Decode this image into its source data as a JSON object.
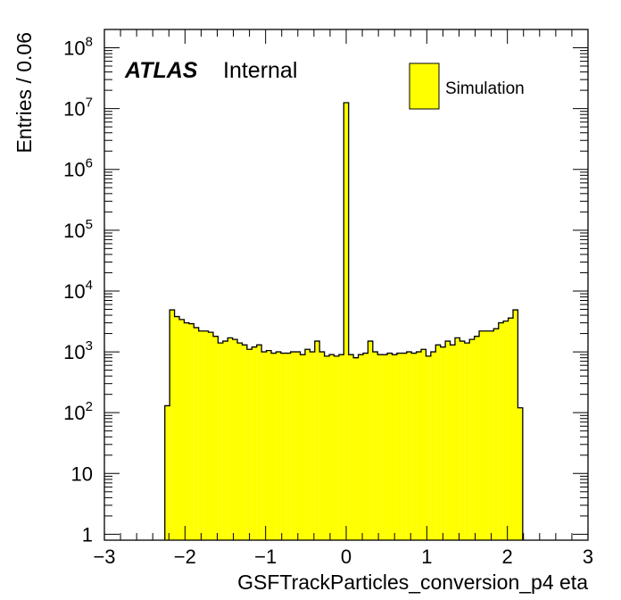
{
  "chart_data": {
    "type": "bar",
    "style": "step-histogram",
    "xlabel": "GSFTrackParticles_conversion_p4 eta",
    "ylabel": "Entries / 0.06",
    "xlim": [
      -3,
      3
    ],
    "ylim": [
      0.8,
      200000000
    ],
    "yscale": "log",
    "bin_width": 0.06,
    "x_ticks": [
      {
        "value": -3,
        "label": "−3"
      },
      {
        "value": -2,
        "label": "−2"
      },
      {
        "value": -1,
        "label": "−1"
      },
      {
        "value": 0,
        "label": "0"
      },
      {
        "value": 1,
        "label": "1"
      },
      {
        "value": 2,
        "label": "2"
      },
      {
        "value": 3,
        "label": "3"
      }
    ],
    "y_ticks": [
      {
        "value": 1,
        "base": "1",
        "exp": ""
      },
      {
        "value": 10,
        "base": "10",
        "exp": ""
      },
      {
        "value": 100,
        "base": "10",
        "exp": "2"
      },
      {
        "value": 1000,
        "base": "10",
        "exp": "3"
      },
      {
        "value": 10000,
        "base": "10",
        "exp": "4"
      },
      {
        "value": 100000,
        "base": "10",
        "exp": "5"
      },
      {
        "value": 1000000,
        "base": "10",
        "exp": "6"
      },
      {
        "value": 10000000,
        "base": "10",
        "exp": "7"
      },
      {
        "value": 100000000,
        "base": "10",
        "exp": "8"
      }
    ],
    "fill_color": "#ffff00",
    "line_color": "#000000",
    "atlas_label": "ATLAS",
    "atlas_sublabel": "Internal",
    "legend": {
      "position": "top-right",
      "entry": "Simulation"
    },
    "series": [
      {
        "name": "Simulation",
        "bins": [
          {
            "x": -2.22,
            "v": 130
          },
          {
            "x": -2.16,
            "v": 4900
          },
          {
            "x": -2.1,
            "v": 3800
          },
          {
            "x": -2.04,
            "v": 3400
          },
          {
            "x": -1.98,
            "v": 3000
          },
          {
            "x": -1.92,
            "v": 2900
          },
          {
            "x": -1.86,
            "v": 2500
          },
          {
            "x": -1.8,
            "v": 2200
          },
          {
            "x": -1.74,
            "v": 2200
          },
          {
            "x": -1.68,
            "v": 2100
          },
          {
            "x": -1.62,
            "v": 1800
          },
          {
            "x": -1.56,
            "v": 1400
          },
          {
            "x": -1.5,
            "v": 1500
          },
          {
            "x": -1.44,
            "v": 1700
          },
          {
            "x": -1.38,
            "v": 1600
          },
          {
            "x": -1.32,
            "v": 1400
          },
          {
            "x": -1.26,
            "v": 1300
          },
          {
            "x": -1.2,
            "v": 1100
          },
          {
            "x": -1.14,
            "v": 1200
          },
          {
            "x": -1.08,
            "v": 1300
          },
          {
            "x": -1.02,
            "v": 1000
          },
          {
            "x": -0.96,
            "v": 1050
          },
          {
            "x": -0.9,
            "v": 950
          },
          {
            "x": -0.84,
            "v": 1000
          },
          {
            "x": -0.78,
            "v": 950
          },
          {
            "x": -0.72,
            "v": 950
          },
          {
            "x": -0.66,
            "v": 1000
          },
          {
            "x": -0.6,
            "v": 1000
          },
          {
            "x": -0.54,
            "v": 900
          },
          {
            "x": -0.48,
            "v": 1100
          },
          {
            "x": -0.42,
            "v": 1000
          },
          {
            "x": -0.36,
            "v": 1500
          },
          {
            "x": -0.3,
            "v": 1000
          },
          {
            "x": -0.24,
            "v": 850
          },
          {
            "x": -0.18,
            "v": 900
          },
          {
            "x": -0.12,
            "v": 850
          },
          {
            "x": -0.06,
            "v": 900
          },
          {
            "x": 0.0,
            "v": 12500000
          },
          {
            "x": 0.06,
            "v": 900
          },
          {
            "x": 0.12,
            "v": 800
          },
          {
            "x": 0.18,
            "v": 900
          },
          {
            "x": 0.24,
            "v": 950
          },
          {
            "x": 0.3,
            "v": 1500
          },
          {
            "x": 0.36,
            "v": 1000
          },
          {
            "x": 0.42,
            "v": 900
          },
          {
            "x": 0.48,
            "v": 900
          },
          {
            "x": 0.54,
            "v": 950
          },
          {
            "x": 0.6,
            "v": 900
          },
          {
            "x": 0.66,
            "v": 950
          },
          {
            "x": 0.72,
            "v": 950
          },
          {
            "x": 0.78,
            "v": 1000
          },
          {
            "x": 0.84,
            "v": 950
          },
          {
            "x": 0.9,
            "v": 1000
          },
          {
            "x": 0.96,
            "v": 1100
          },
          {
            "x": 1.02,
            "v": 850
          },
          {
            "x": 1.08,
            "v": 1000
          },
          {
            "x": 1.14,
            "v": 1300
          },
          {
            "x": 1.2,
            "v": 1200
          },
          {
            "x": 1.26,
            "v": 1500
          },
          {
            "x": 1.32,
            "v": 1300
          },
          {
            "x": 1.38,
            "v": 1700
          },
          {
            "x": 1.44,
            "v": 1500
          },
          {
            "x": 1.5,
            "v": 1400
          },
          {
            "x": 1.56,
            "v": 1600
          },
          {
            "x": 1.62,
            "v": 1800
          },
          {
            "x": 1.68,
            "v": 2200
          },
          {
            "x": 1.74,
            "v": 2200
          },
          {
            "x": 1.8,
            "v": 2200
          },
          {
            "x": 1.86,
            "v": 2400
          },
          {
            "x": 1.92,
            "v": 3000
          },
          {
            "x": 1.98,
            "v": 3200
          },
          {
            "x": 2.04,
            "v": 3600
          },
          {
            "x": 2.1,
            "v": 4900
          },
          {
            "x": 2.16,
            "v": 120
          }
        ]
      }
    ]
  }
}
